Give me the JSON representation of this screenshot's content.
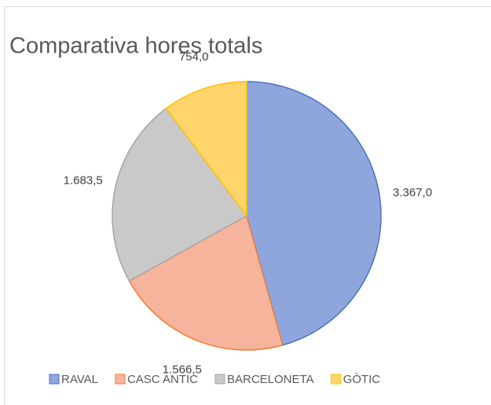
{
  "chart_data": {
    "type": "pie",
    "title": "Comparativa hores totals",
    "categories": [
      "RAVAL",
      "CASC ANTIC",
      "BARCELONETA",
      "GÒTIC"
    ],
    "values": [
      3367.0,
      1566.5,
      1683.5,
      754.0
    ],
    "value_labels": [
      "3.367,0",
      "1.566,5",
      "1.683,5",
      "754,0"
    ],
    "colors": [
      "#8fa6dd",
      "#f5b49b",
      "#c9c9c9",
      "#ffd56b"
    ],
    "edge_colors": [
      "#4472c4",
      "#ed7d31",
      "#a5a5a5",
      "#ffc000"
    ],
    "legend": "bottom"
  }
}
